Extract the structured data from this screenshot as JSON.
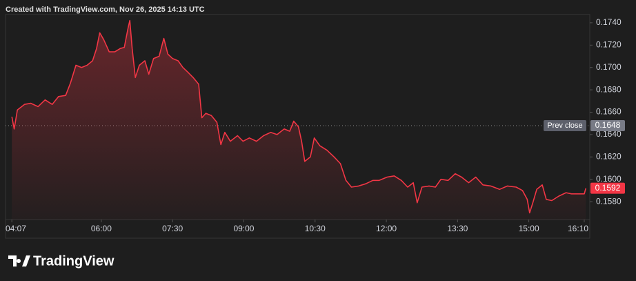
{
  "header": {
    "text": "Created with TradingView.com, Nov 26, 2025 14:13 UTC"
  },
  "chart_data": {
    "type": "area",
    "color": "#f23645",
    "x": [
      247,
      250,
      254,
      263,
      271,
      280,
      289,
      298,
      306,
      315,
      321,
      328,
      335,
      342,
      349,
      354,
      358,
      363,
      370,
      377,
      384,
      389,
      394,
      396,
      399,
      403,
      408,
      415,
      420,
      426,
      433,
      439,
      444,
      450,
      457,
      463,
      469,
      476,
      483,
      487,
      492,
      499,
      506,
      511,
      516,
      523,
      532,
      539,
      547,
      556,
      565,
      574,
      582,
      591,
      598,
      603,
      609,
      613,
      617,
      624,
      629,
      636,
      645,
      654,
      662,
      669,
      676,
      685,
      694,
      703,
      711,
      721,
      730,
      739,
      747,
      754,
      759,
      765,
      774,
      782,
      789,
      798,
      807,
      815,
      824,
      833,
      842,
      852,
      863,
      873,
      884,
      892,
      898,
      901,
      905,
      910,
      917,
      922,
      929,
      938,
      947,
      954,
      963,
      970,
      972
    ],
    "values": [
      0.1656,
      0.1645,
      0.1662,
      0.1667,
      0.1668,
      0.1665,
      0.1671,
      0.1667,
      0.1674,
      0.1675,
      0.1686,
      0.1702,
      0.17,
      0.1702,
      0.1706,
      0.1717,
      0.1731,
      0.1725,
      0.1714,
      0.1714,
      0.1717,
      0.1718,
      0.1736,
      0.1742,
      0.1717,
      0.1691,
      0.1702,
      0.1706,
      0.1694,
      0.1708,
      0.171,
      0.1726,
      0.1712,
      0.1708,
      0.1706,
      0.17,
      0.1696,
      0.1691,
      0.1685,
      0.1655,
      0.1659,
      0.1657,
      0.1651,
      0.1631,
      0.1642,
      0.1634,
      0.1639,
      0.1634,
      0.1637,
      0.1634,
      0.1639,
      0.1642,
      0.164,
      0.1645,
      0.1643,
      0.1652,
      0.1647,
      0.1634,
      0.1616,
      0.162,
      0.1637,
      0.163,
      0.1626,
      0.162,
      0.1614,
      0.1599,
      0.1593,
      0.1594,
      0.1596,
      0.1599,
      0.1599,
      0.1602,
      0.1603,
      0.1599,
      0.1593,
      0.1597,
      0.1579,
      0.1593,
      0.1594,
      0.1593,
      0.16,
      0.1599,
      0.1605,
      0.1602,
      0.1597,
      0.1602,
      0.1595,
      0.1594,
      0.1591,
      0.1594,
      0.1593,
      0.159,
      0.1582,
      0.157,
      0.1579,
      0.1591,
      0.1595,
      0.1582,
      0.1581,
      0.1585,
      0.1588,
      0.1587,
      0.1587,
      0.1587,
      0.1592
    ],
    "xlim": [
      239,
      977
    ],
    "xticks": [
      {
        "value": 247,
        "label": "04:07"
      },
      {
        "value": 360,
        "label": "06:00"
      },
      {
        "value": 450,
        "label": "07:30"
      },
      {
        "value": 540,
        "label": "09:00"
      },
      {
        "value": 630,
        "label": "10:30"
      },
      {
        "value": 720,
        "label": "12:00"
      },
      {
        "value": 810,
        "label": "13:30"
      },
      {
        "value": 900,
        "label": "15:00"
      },
      {
        "value": 970,
        "label": "16:10"
      }
    ],
    "ylim": [
      0.1564,
      0.1748
    ],
    "yticks": [
      {
        "value": 0.158,
        "label": "0.1580"
      },
      {
        "value": 0.16,
        "label": "0.1600"
      },
      {
        "value": 0.162,
        "label": "0.1620"
      },
      {
        "value": 0.164,
        "label": "0.1640"
      },
      {
        "value": 0.166,
        "label": "0.1660"
      },
      {
        "value": 0.168,
        "label": "0.1680"
      },
      {
        "value": 0.17,
        "label": "0.1700"
      },
      {
        "value": 0.172,
        "label": "0.1720"
      },
      {
        "value": 0.174,
        "label": "0.1740"
      }
    ],
    "prev_close": {
      "label": "Prev close",
      "value": 0.1648
    },
    "last_value": 0.1592
  },
  "footer": {
    "logo": "TradingView"
  }
}
